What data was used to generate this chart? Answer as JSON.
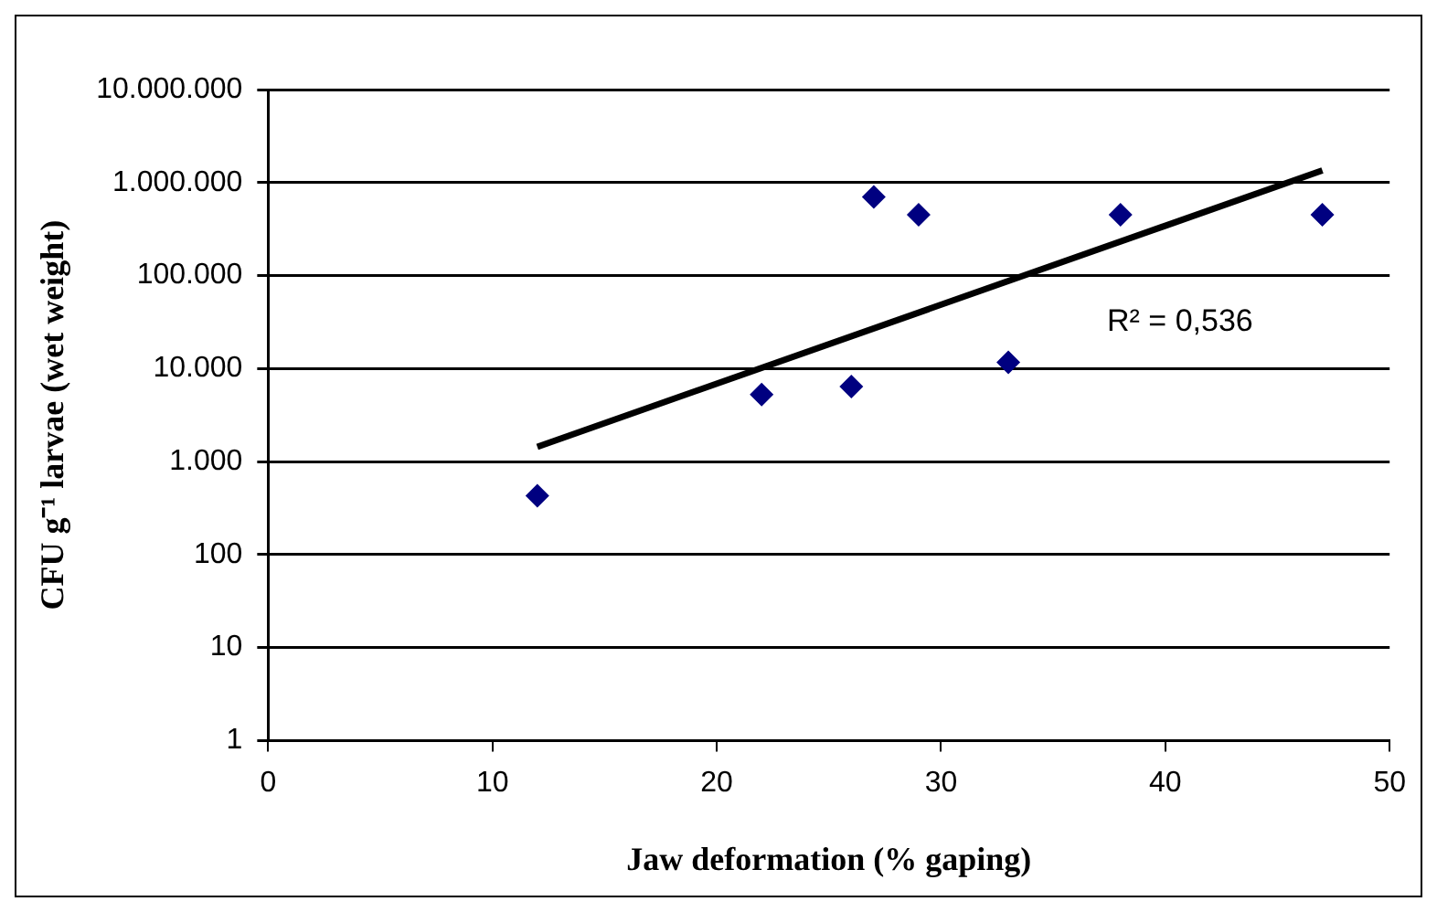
{
  "chart_data": {
    "type": "scatter",
    "xlabel": "Jaw deformation (% gaping)",
    "ylabel": "CFU g⁻¹ larvae (wet weight)",
    "log": "y",
    "grid": "y",
    "legend": false,
    "marker": "diamond",
    "xlim": [
      0,
      50
    ],
    "xticks": [
      0,
      10,
      20,
      30,
      40,
      50
    ],
    "ylim": [
      1,
      10000000
    ],
    "yticks": [
      1,
      10,
      100,
      {
        "value": 1000,
        "label": "1.000"
      },
      {
        "value": 10000,
        "label": "10.000"
      },
      {
        "value": 100000,
        "label": "100.000"
      },
      {
        "value": 1000000,
        "label": "1.000.000"
      },
      {
        "value": 10000000,
        "label": "10.000.000"
      }
    ],
    "annotations": [
      "R² = 0,536"
    ],
    "series": [
      {
        "type": "scatter",
        "color": "#000080",
        "x": [
          12,
          22,
          26,
          27,
          29,
          33,
          38,
          47
        ],
        "values": [
          430,
          5250,
          6400,
          700000,
          450000,
          11700,
          450000,
          450000
        ]
      },
      {
        "type": "line",
        "color": "#000000",
        "x": [
          12,
          47
        ],
        "values": [
          1440,
          1350000
        ],
        "marker": "none",
        "line_style": "solid"
      }
    ]
  }
}
